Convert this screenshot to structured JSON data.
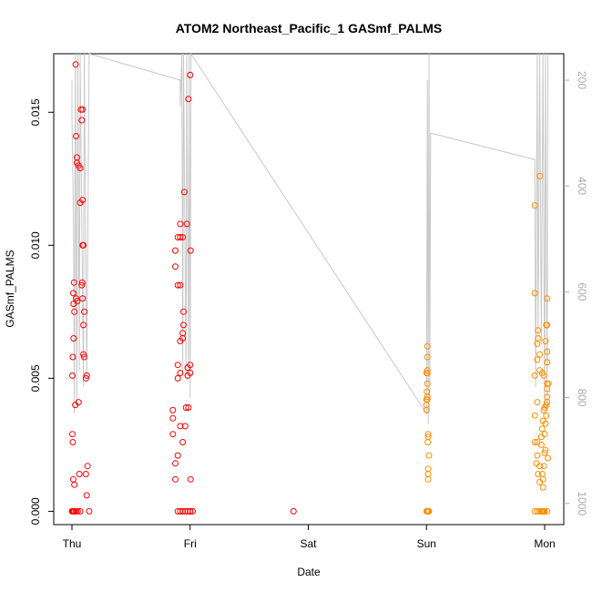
{
  "chart_data": {
    "type": "scatter",
    "title": "ATOM2 Northeast_Pacific_1 GASmf_PALMS",
    "xlabel": "Date",
    "ylabel": "GASmf_PALMS",
    "ylabel_right": "",
    "x_ticks": [
      "Thu",
      "Fri",
      "Sat",
      "Sun",
      "Mon"
    ],
    "xlim": [
      "Thu 00:00",
      "Mon 04:00"
    ],
    "ylim": [
      -0.0005,
      0.0172
    ],
    "y_ticks": [
      "0.000",
      "0.005",
      "0.010",
      "0.015"
    ],
    "right_ylim": [
      1040,
      150
    ],
    "right_ticks": [
      "200",
      "400",
      "600",
      "800",
      "1000"
    ],
    "grid": false,
    "legend": "none",
    "colors": {
      "red_series": "#ff0000",
      "orange_series": "#ff8c00",
      "altitude_line": "#c8c8c8",
      "axis": "#000000",
      "right_axis": "#aaaaaa"
    },
    "series": [
      {
        "marker": "open-circle",
        "color": "#ff0000",
        "points": [
          [
            "Thu 00:00",
            0.0
          ],
          [
            "Thu 00:10",
            0.0
          ],
          [
            "Thu 00:20",
            0.0
          ],
          [
            "Thu 00:30",
            0.0
          ],
          [
            "Thu 00:50",
            0.0
          ],
          [
            "Thu 01:10",
            0.0
          ],
          [
            "Thu 01:40",
            0.0
          ],
          [
            "Thu 03:30",
            0.0
          ],
          [
            "Thu 00:05",
            0.0029
          ],
          [
            "Thu 00:10",
            0.0026
          ],
          [
            "Thu 00:15",
            0.0012
          ],
          [
            "Thu 00:30",
            0.001
          ],
          [
            "Thu 01:30",
            0.0014
          ],
          [
            "Thu 02:50",
            0.0014
          ],
          [
            "Thu 03:10",
            0.0017
          ],
          [
            "Thu 03:00",
            0.0006
          ],
          [
            "Thu 00:05",
            0.0051
          ],
          [
            "Thu 00:10",
            0.0058
          ],
          [
            "Thu 00:20",
            0.0065
          ],
          [
            "Thu 00:20",
            0.0078
          ],
          [
            "Thu 00:15",
            0.0082
          ],
          [
            "Thu 00:25",
            0.0086
          ],
          [
            "Thu 00:30",
            0.0075
          ],
          [
            "Thu 00:40",
            0.004
          ],
          [
            "Thu 01:20",
            0.0041
          ],
          [
            "Thu 00:50",
            0.008
          ],
          [
            "Thu 01:05",
            0.0079
          ],
          [
            "Thu 02:10",
            0.008
          ],
          [
            "Thu 02:00",
            0.0085
          ],
          [
            "Thu 02:05",
            0.0086
          ],
          [
            "Thu 02:20",
            0.007
          ],
          [
            "Thu 02:30",
            0.0075
          ],
          [
            "Thu 02:20",
            0.0059
          ],
          [
            "Thu 02:30",
            0.0058
          ],
          [
            "Thu 02:50",
            0.005
          ],
          [
            "Thu 03:00",
            0.0051
          ],
          [
            "Thu 02:10",
            0.01
          ],
          [
            "Thu 02:20",
            0.01
          ],
          [
            "Thu 01:40",
            0.0116
          ],
          [
            "Thu 02:10",
            0.0117
          ],
          [
            "Thu 01:40",
            0.0129
          ],
          [
            "Thu 01:00",
            0.0131
          ],
          [
            "Thu 01:00",
            0.0133
          ],
          [
            "Thu 01:20",
            0.013
          ],
          [
            "Thu 00:50",
            0.0141
          ],
          [
            "Thu 02:00",
            0.0147
          ],
          [
            "Thu 02:10",
            0.0151
          ],
          [
            "Thu 01:50",
            0.0151
          ],
          [
            "Thu 00:45",
            0.0168
          ],
          [
            "Fri 21:00",
            0.0,
            "prev"
          ],
          [
            "Thu 21:30",
            0.0
          ],
          [
            "Thu 22:00",
            0.0
          ],
          [
            "Thu 22:30",
            0.0
          ],
          [
            "Thu 23:00",
            0.0
          ],
          [
            "Thu 23:30",
            0.0
          ],
          [
            "Fri 00:00",
            0.0
          ],
          [
            "Fri 00:30",
            0.0
          ],
          [
            "Fri 00:00",
            0.0
          ],
          [
            "Thu 21:00",
            0.0012
          ],
          [
            "Thu 21:00",
            0.0018
          ],
          [
            "Thu 21:30",
            0.0021
          ],
          [
            "Thu 22:00",
            0.0032
          ],
          [
            "Thu 22:30",
            0.0026
          ],
          [
            "Thu 23:00",
            0.0032
          ],
          [
            "Thu 20:30",
            0.0029
          ],
          [
            "Thu 20:30",
            0.0035
          ],
          [
            "Thu 20:30",
            0.0038
          ],
          [
            "Thu 21:30",
            0.005
          ],
          [
            "Thu 21:30",
            0.0055
          ],
          [
            "Thu 22:00",
            0.0052
          ],
          [
            "Thu 22:00",
            0.0064
          ],
          [
            "Thu 22:30",
            0.0065
          ],
          [
            "Thu 22:30",
            0.0067
          ],
          [
            "Thu 22:40",
            0.007
          ],
          [
            "Thu 22:40",
            0.0075
          ],
          [
            "Thu 21:30",
            0.0085
          ],
          [
            "Thu 22:00",
            0.0085
          ],
          [
            "Thu 21:00",
            0.0092
          ],
          [
            "Thu 21:00",
            0.0098
          ],
          [
            "Thu 21:30",
            0.0103
          ],
          [
            "Thu 22:00",
            0.0108
          ],
          [
            "Thu 22:00",
            0.0103
          ],
          [
            "Thu 22:30",
            0.0103
          ],
          [
            "Thu 23:20",
            0.0108
          ],
          [
            "Thu 22:50",
            0.012
          ],
          [
            "Thu 23:10",
            0.0039
          ],
          [
            "Thu 23:40",
            0.0039
          ],
          [
            "Thu 23:30",
            0.0051
          ],
          [
            "Thu 23:30",
            0.0054
          ],
          [
            "Fri 00:00",
            0.0052
          ],
          [
            "Fri 00:00",
            0.0055
          ],
          [
            "Fri 00:05",
            0.0012
          ],
          [
            "Fri 00:05",
            0.0098
          ],
          [
            "Thu 23:40",
            0.0155
          ],
          [
            "Fri 00:00",
            0.0164
          ]
        ]
      },
      {
        "marker": "open-circle",
        "color": "#ff8c00",
        "points": [
          [
            "Sun 00:00",
            0.0
          ],
          [
            "Sun 00:10",
            0.0
          ],
          [
            "Sun 00:20",
            0.0
          ],
          [
            "Sun 00:30",
            0.0
          ],
          [
            "Sun 00:20",
            0.0012
          ],
          [
            "Sun 00:20",
            0.0014
          ],
          [
            "Sun 00:20",
            0.0016
          ],
          [
            "Sun 00:30",
            0.0021
          ],
          [
            "Sun 00:15",
            0.0026
          ],
          [
            "Sun 00:20",
            0.0028
          ],
          [
            "Sun 00:20",
            0.0029
          ],
          [
            "Sun 00:00",
            0.0038
          ],
          [
            "Sun 00:00",
            0.004
          ],
          [
            "Sun 00:00",
            0.0042
          ],
          [
            "Sun 00:10",
            0.0042
          ],
          [
            "Sun 00:10",
            0.0043
          ],
          [
            "Sun 00:05",
            0.0045
          ],
          [
            "Sun 00:10",
            0.0048
          ],
          [
            "Sun 00:00",
            0.0052
          ],
          [
            "Sun 00:10",
            0.0052
          ],
          [
            "Sun 00:10",
            0.0053
          ],
          [
            "Sun 00:10",
            0.0058
          ],
          [
            "Sun 00:10",
            0.0062
          ],
          [
            "Sun 22:00",
            0.0115
          ],
          [
            "Sun 23:00",
            0.0126
          ],
          [
            "Sun 22:00",
            0.0082
          ],
          [
            "Sun 22:00",
            0.0
          ],
          [
            "Sun 22:30",
            0.0
          ],
          [
            "Sun 23:00",
            0.0
          ],
          [
            "Sun 23:30",
            0.0
          ],
          [
            "Mon 00:00",
            0.0
          ],
          [
            "Mon 00:30",
            0.0
          ],
          [
            "Sun 23:20",
            0.0
          ],
          [
            "Sun 23:40",
            0.0
          ],
          [
            "Sun 23:50",
            0.0
          ],
          [
            "Sun 22:00",
            0.0051
          ],
          [
            "Sun 22:30",
            0.0057
          ],
          [
            "Sun 22:30",
            0.0063
          ],
          [
            "Sun 22:40",
            0.0065
          ],
          [
            "Sun 22:40",
            0.0068
          ],
          [
            "Sun 23:00",
            0.0059
          ],
          [
            "Sun 23:00",
            0.0053
          ],
          [
            "Sun 22:00",
            0.0036
          ],
          [
            "Sun 22:30",
            0.0041
          ],
          [
            "Sun 22:30",
            0.0026
          ],
          [
            "Sun 22:00",
            0.0026
          ],
          [
            "Sun 22:30",
            0.0021
          ],
          [
            "Sun 22:20",
            0.0018
          ],
          [
            "Sun 22:40",
            0.0014
          ],
          [
            "Sun 23:00",
            0.0017
          ],
          [
            "Sun 23:00",
            0.0011
          ],
          [
            "Sun 23:30",
            0.0014
          ],
          [
            "Sun 23:40",
            0.0012
          ],
          [
            "Sun 23:40",
            0.0009
          ],
          [
            "Sun 23:50",
            0.0017
          ],
          [
            "Mon 00:00",
            0.0022
          ],
          [
            "Mon 00:10",
            0.0023
          ],
          [
            "Sun 23:20",
            0.0025
          ],
          [
            "Sun 23:20",
            0.0028
          ],
          [
            "Sun 23:30",
            0.0031
          ],
          [
            "Sun 23:40",
            0.0034
          ],
          [
            "Sun 23:50",
            0.0038
          ],
          [
            "Mon 00:00",
            0.0039
          ],
          [
            "Mon 00:20",
            0.004
          ],
          [
            "Mon 00:30",
            0.0041
          ],
          [
            "Mon 00:30",
            0.0043
          ],
          [
            "Mon 00:30",
            0.0046
          ],
          [
            "Mon 00:30",
            0.0048
          ],
          [
            "Mon 00:45",
            0.0048
          ],
          [
            "Mon 00:30",
            0.0056
          ],
          [
            "Mon 00:30",
            0.006
          ],
          [
            "Mon 00:10",
            0.0064
          ],
          [
            "Mon 00:20",
            0.007
          ],
          [
            "Mon 00:30",
            0.007
          ],
          [
            "Mon 00:30",
            0.008
          ],
          [
            "Sun 23:30",
            0.0052
          ],
          [
            "Sun 23:50",
            0.0051
          ],
          [
            "Mon 00:00",
            0.0029
          ],
          [
            "Mon 00:40",
            0.002
          ],
          [
            "Mon 00:10",
            0.0033
          ],
          [
            "Mon 00:20",
            0.0036
          ],
          [
            "Mon 00:30",
            0.0056
          ]
        ]
      }
    ],
    "altitude_line": {
      "color": "#c8c8c8",
      "points": [
        [
          "Thu 00:00",
          200
        ],
        [
          "Thu 00:00",
          270
        ],
        [
          "Thu 00:20",
          480
        ],
        [
          "Thu 00:30",
          830
        ],
        [
          "Thu 00:40",
          150
        ],
        [
          "Thu 01:00",
          820
        ],
        [
          "Thu 01:10",
          150
        ],
        [
          "Thu 01:30",
          750
        ],
        [
          "Thu 01:40",
          150
        ],
        [
          "Thu 02:20",
          780
        ],
        [
          "Thu 02:30",
          150
        ],
        [
          "Thu 03:00",
          760
        ],
        [
          "Thu 03:30",
          150
        ],
        [
          "Thu 22:00",
          200
        ],
        [
          "Thu 22:00",
          250
        ],
        [
          "Thu 22:20",
          150
        ],
        [
          "Thu 22:30",
          760
        ],
        [
          "Thu 22:40",
          150
        ],
        [
          "Thu 23:10",
          760
        ],
        [
          "Thu 23:20",
          150
        ],
        [
          "Thu 23:40",
          750
        ],
        [
          "Thu 23:50",
          150
        ],
        [
          "Fri 00:00",
          800
        ],
        [
          "Fri 00:10",
          150
        ],
        [
          "Sun 00:00",
          830
        ],
        [
          "Sun 00:10",
          200
        ],
        [
          "Sun 00:20",
          850
        ],
        [
          "Sun 00:30",
          150
        ],
        [
          "Sun 00:40",
          800
        ],
        [
          "Sun 00:50",
          300
        ],
        [
          "Sun 22:00",
          350
        ],
        [
          "Sun 22:10",
          780
        ],
        [
          "Sun 22:20",
          500
        ],
        [
          "Sun 22:30",
          150
        ],
        [
          "Sun 22:40",
          700
        ],
        [
          "Sun 23:00",
          150
        ],
        [
          "Sun 23:20",
          700
        ],
        [
          "Sun 23:40",
          150
        ],
        [
          "Mon 00:00",
          820
        ],
        [
          "Mon 00:10",
          150
        ],
        [
          "Mon 00:30",
          820
        ],
        [
          "Mon 00:40",
          150
        ]
      ]
    }
  }
}
